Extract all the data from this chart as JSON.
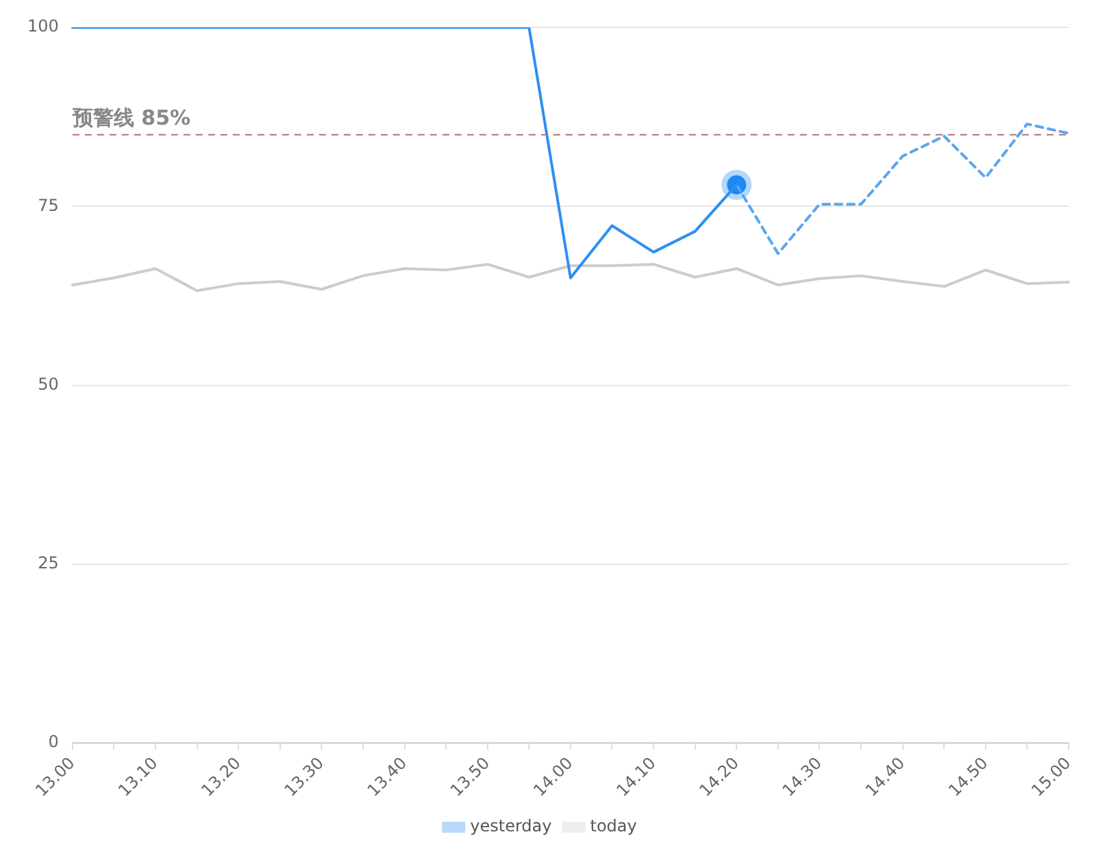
{
  "chart_data": {
    "type": "line",
    "categories": [
      "13.00",
      null,
      "13.10",
      null,
      "13.20",
      null,
      "13.30",
      null,
      "13.40",
      null,
      "13.50",
      null,
      "14.00",
      null,
      "14.10",
      null,
      "14.20",
      null,
      "14.30",
      null,
      "14.40",
      null,
      "14.50",
      null,
      "15.00"
    ],
    "series": [
      {
        "name": "yesterday",
        "color": "#2f8ff0",
        "line_style": "solid",
        "marker": "none",
        "values": [
          100,
          100,
          100,
          100,
          100,
          100,
          100,
          100,
          100,
          100,
          100,
          100,
          65,
          72.3,
          68.6,
          71.5,
          78,
          null,
          null,
          null,
          null,
          null,
          null,
          null,
          null
        ]
      },
      {
        "name": "today",
        "color": "#cccccc",
        "line_style": "solid",
        "marker": "none",
        "values": [
          64,
          65,
          66.3,
          63.2,
          64.2,
          64.5,
          63.4,
          65.3,
          66.3,
          66.1,
          66.9,
          65.1,
          66.7,
          66.7,
          66.9,
          65.1,
          66.3,
          64,
          64.9,
          65.3,
          64.5,
          63.8,
          66.1,
          64.2,
          64.4
        ]
      },
      {
        "color": "#5aa5f0",
        "line_style": "dashed",
        "marker": "none",
        "values": [
          null,
          null,
          null,
          null,
          null,
          null,
          null,
          null,
          null,
          null,
          null,
          null,
          null,
          null,
          null,
          null,
          78,
          68.4,
          75.3,
          75.3,
          82,
          84.8,
          79,
          86.5,
          85.2
        ]
      },
      {
        "type": "scatter",
        "color": "#1e88f5",
        "marker": "circle",
        "values": [
          null,
          null,
          null,
          null,
          null,
          null,
          null,
          null,
          null,
          null,
          null,
          null,
          null,
          null,
          null,
          null,
          78,
          null,
          null,
          null,
          null,
          null,
          null,
          null,
          null
        ]
      }
    ],
    "ylim": [
      0,
      100
    ],
    "yticks": [
      0,
      25,
      50,
      75,
      100
    ],
    "ref_lines": [
      {
        "axis": "y",
        "value": 85,
        "label": "预警线 85%",
        "color": "#b0707a",
        "line_style": "dashed"
      }
    ],
    "grid": "y",
    "legend": "bottom"
  }
}
